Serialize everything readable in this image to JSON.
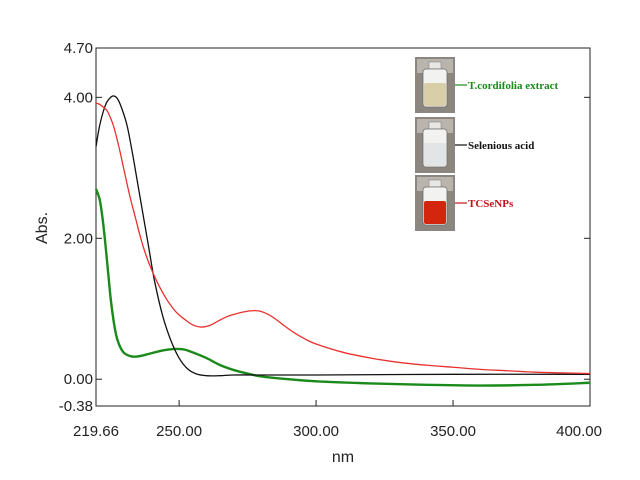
{
  "chart_data": {
    "type": "line",
    "title": "",
    "xlabel": "nm",
    "ylabel": "Abs.",
    "xlim": [
      219.66,
      400.0
    ],
    "ylim": [
      -0.38,
      4.7
    ],
    "grid": false,
    "legend_position": "top-right",
    "x_ticks": [
      "219.66",
      "250.00",
      "300.00",
      "350.00",
      "400.00"
    ],
    "y_ticks": [
      "4.70",
      "4.00",
      "2.00",
      "0.00",
      "-0.38"
    ],
    "series": [
      {
        "name": "T.cordifolia extract",
        "color": "#1a8a1a",
        "x": [
          219.66,
          221,
          222,
          223,
          224,
          225,
          226,
          227,
          228,
          229,
          230,
          232,
          234,
          236,
          238,
          240,
          243,
          246,
          249,
          252,
          255,
          260,
          265,
          270,
          275,
          280,
          290,
          300,
          320,
          340,
          360,
          380,
          400
        ],
        "y": [
          2.7,
          2.55,
          2.3,
          1.95,
          1.55,
          1.15,
          0.85,
          0.63,
          0.5,
          0.42,
          0.37,
          0.33,
          0.32,
          0.33,
          0.35,
          0.37,
          0.4,
          0.42,
          0.43,
          0.42,
          0.38,
          0.3,
          0.2,
          0.13,
          0.08,
          0.04,
          0.0,
          -0.03,
          -0.06,
          -0.08,
          -0.09,
          -0.08,
          -0.05
        ]
      },
      {
        "name": "Selenious acid",
        "color": "#111111",
        "x": [
          219.66,
          221,
          223,
          224.5,
          226,
          227.5,
          229,
          231,
          233,
          235,
          237,
          239,
          241,
          244,
          247,
          250,
          253,
          256,
          260,
          265,
          270,
          280,
          300,
          350,
          400
        ],
        "y": [
          3.3,
          3.6,
          3.88,
          3.98,
          4.02,
          3.98,
          3.85,
          3.6,
          3.2,
          2.75,
          2.3,
          1.85,
          1.4,
          0.9,
          0.55,
          0.3,
          0.15,
          0.08,
          0.05,
          0.05,
          0.06,
          0.06,
          0.06,
          0.07,
          0.07
        ]
      },
      {
        "name": "TCSeNPs",
        "color": "#e8312f",
        "x": [
          219.66,
          221,
          222,
          223,
          224,
          226,
          228,
          230,
          232,
          234,
          236,
          238,
          240,
          243,
          246,
          249,
          252,
          255,
          258,
          261,
          264,
          267,
          270,
          273,
          276,
          279,
          282,
          285,
          288,
          292,
          296,
          300,
          310,
          320,
          330,
          340,
          350,
          360,
          370,
          380,
          390,
          400
        ],
        "y": [
          3.92,
          3.9,
          3.87,
          3.84,
          3.79,
          3.6,
          3.3,
          2.95,
          2.6,
          2.3,
          2.0,
          1.75,
          1.55,
          1.3,
          1.1,
          0.95,
          0.85,
          0.77,
          0.74,
          0.76,
          0.82,
          0.88,
          0.92,
          0.95,
          0.97,
          0.97,
          0.93,
          0.86,
          0.77,
          0.66,
          0.57,
          0.5,
          0.38,
          0.3,
          0.24,
          0.2,
          0.17,
          0.14,
          0.12,
          0.1,
          0.09,
          0.08
        ]
      }
    ]
  },
  "legend_vials": [
    {
      "label": "T.cordifolia extract",
      "liquid": "#d8cfa8",
      "label_color": "#1a8a1a"
    },
    {
      "label": "Selenious acid",
      "liquid": "#e2e4e6",
      "label_color": "#111111"
    },
    {
      "label": "TCSeNPs",
      "liquid": "#d4260f",
      "label_color": "#c0141a"
    }
  ]
}
